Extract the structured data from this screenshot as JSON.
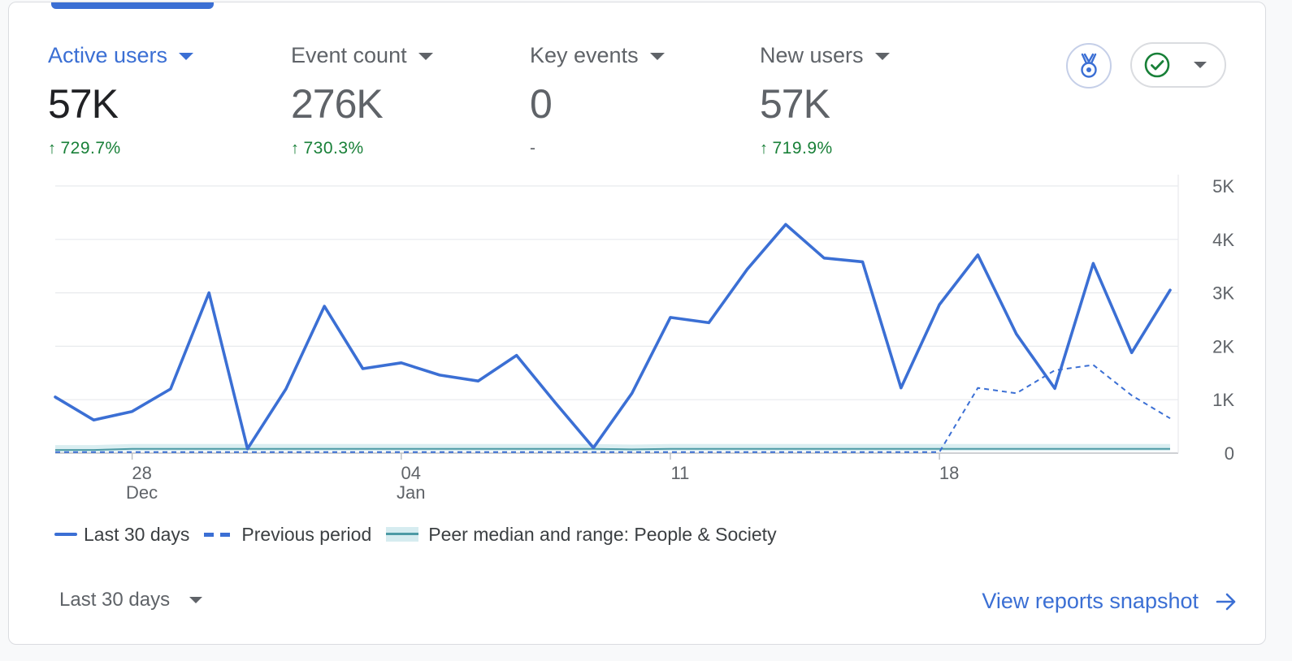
{
  "metrics": [
    {
      "label": "Active users",
      "value": "57K",
      "change": "729.7%",
      "trend": "up"
    },
    {
      "label": "Event count",
      "value": "276K",
      "change": "730.3%",
      "trend": "up"
    },
    {
      "label": "Key events",
      "value": "0",
      "change": "-",
      "trend": "none"
    },
    {
      "label": "New users",
      "value": "57K",
      "change": "719.9%",
      "trend": "up"
    }
  ],
  "actions": {
    "badge_icon": "medal-icon",
    "status_icon": "check-circle-icon"
  },
  "chart_data": {
    "type": "line",
    "x": [
      "Dec 26",
      "Dec 27",
      "Dec 28",
      "Dec 29",
      "Dec 30",
      "Dec 31",
      "Jan 01",
      "Jan 02",
      "Jan 03",
      "Jan 04",
      "Jan 05",
      "Jan 06",
      "Jan 07",
      "Jan 08",
      "Jan 09",
      "Jan 10",
      "Jan 11",
      "Jan 12",
      "Jan 13",
      "Jan 14",
      "Jan 15",
      "Jan 16",
      "Jan 17",
      "Jan 18",
      "Jan 19",
      "Jan 20",
      "Jan 21",
      "Jan 22",
      "Jan 23",
      "Jan 24"
    ],
    "x_ticks": [
      {
        "index": 2,
        "label": "28",
        "sublabel": "Dec"
      },
      {
        "index": 9,
        "label": "04",
        "sublabel": "Jan"
      },
      {
        "index": 16,
        "label": "11",
        "sublabel": ""
      },
      {
        "index": 23,
        "label": "18",
        "sublabel": ""
      }
    ],
    "y_ticks": [
      "0",
      "1K",
      "2K",
      "3K",
      "4K",
      "5K"
    ],
    "ylim": [
      0,
      5000
    ],
    "series": [
      {
        "name": "Last 30 days",
        "style": "solid",
        "color": "#3b6fd4",
        "values": [
          1050,
          620,
          780,
          1200,
          3000,
          80,
          1200,
          2750,
          1580,
          1690,
          1460,
          1350,
          1830,
          950,
          100,
          1120,
          2540,
          2440,
          3440,
          4280,
          3650,
          3580,
          1220,
          2780,
          3710,
          2230,
          1210,
          3550,
          1880,
          3050
        ]
      },
      {
        "name": "Previous period",
        "style": "dashed",
        "color": "#3b6fd4",
        "values": [
          20,
          20,
          20,
          20,
          20,
          20,
          20,
          20,
          20,
          20,
          20,
          20,
          20,
          20,
          20,
          20,
          20,
          20,
          20,
          20,
          20,
          20,
          20,
          20,
          1220,
          1120,
          1550,
          1650,
          1080,
          650
        ]
      },
      {
        "name": "Peer median and range: People & Society",
        "style": "band",
        "color": "#4d9aa5",
        "values": [
          60,
          60,
          80,
          80,
          80,
          80,
          80,
          80,
          80,
          80,
          80,
          80,
          80,
          80,
          80,
          70,
          80,
          80,
          80,
          80,
          80,
          80,
          80,
          80,
          80,
          80,
          80,
          80,
          80,
          80
        ]
      }
    ]
  },
  "legend": [
    {
      "key": "solid",
      "label": "Last 30 days"
    },
    {
      "key": "dashed",
      "label": "Previous period"
    },
    {
      "key": "band",
      "label": "Peer median and range: People & Society"
    }
  ],
  "footer": {
    "range_label": "Last 30 days",
    "link_label": "View reports snapshot"
  }
}
